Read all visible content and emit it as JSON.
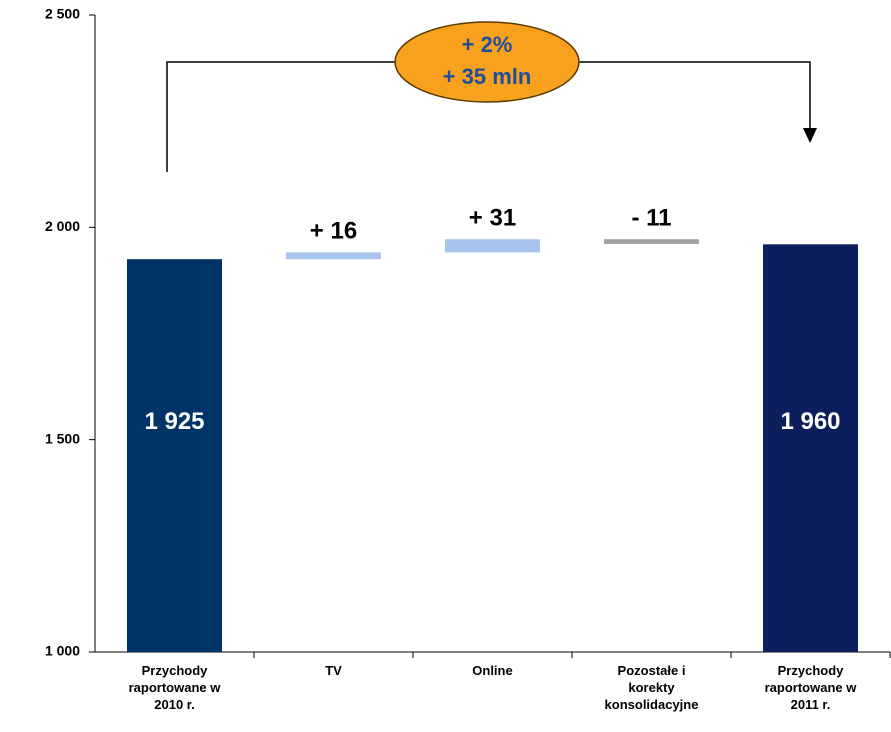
{
  "chart_data": {
    "type": "waterfall",
    "categories": [
      "Przychody\nraportowane w\n2010 r.",
      "TV",
      "Online",
      "Pozostałe i\nkorekty\nkonsolidacyjne",
      "Przychody\nraportowane w\n2011 r."
    ],
    "values": [
      1925,
      16,
      31,
      -11,
      1960
    ],
    "value_labels": [
      "1 925",
      "+ 16",
      "+ 31",
      "- 11",
      "1 960"
    ],
    "measures": [
      "absolute",
      "relative",
      "relative",
      "relative",
      "absolute"
    ],
    "colors": [
      "#003466",
      "#a9c4ec",
      "#a9c4ec",
      "#a0a0a0",
      "#0c1f5c"
    ],
    "ylim": [
      1000,
      2500
    ],
    "yticks": [
      {
        "value": 1000,
        "label": "1 000"
      },
      {
        "value": 1500,
        "label": "1 500"
      },
      {
        "value": 2000,
        "label": "2 000"
      },
      {
        "value": 2500,
        "label": "2 500"
      }
    ],
    "annotation": {
      "lines": [
        "+ 2%",
        "+ 35 mln"
      ]
    }
  }
}
